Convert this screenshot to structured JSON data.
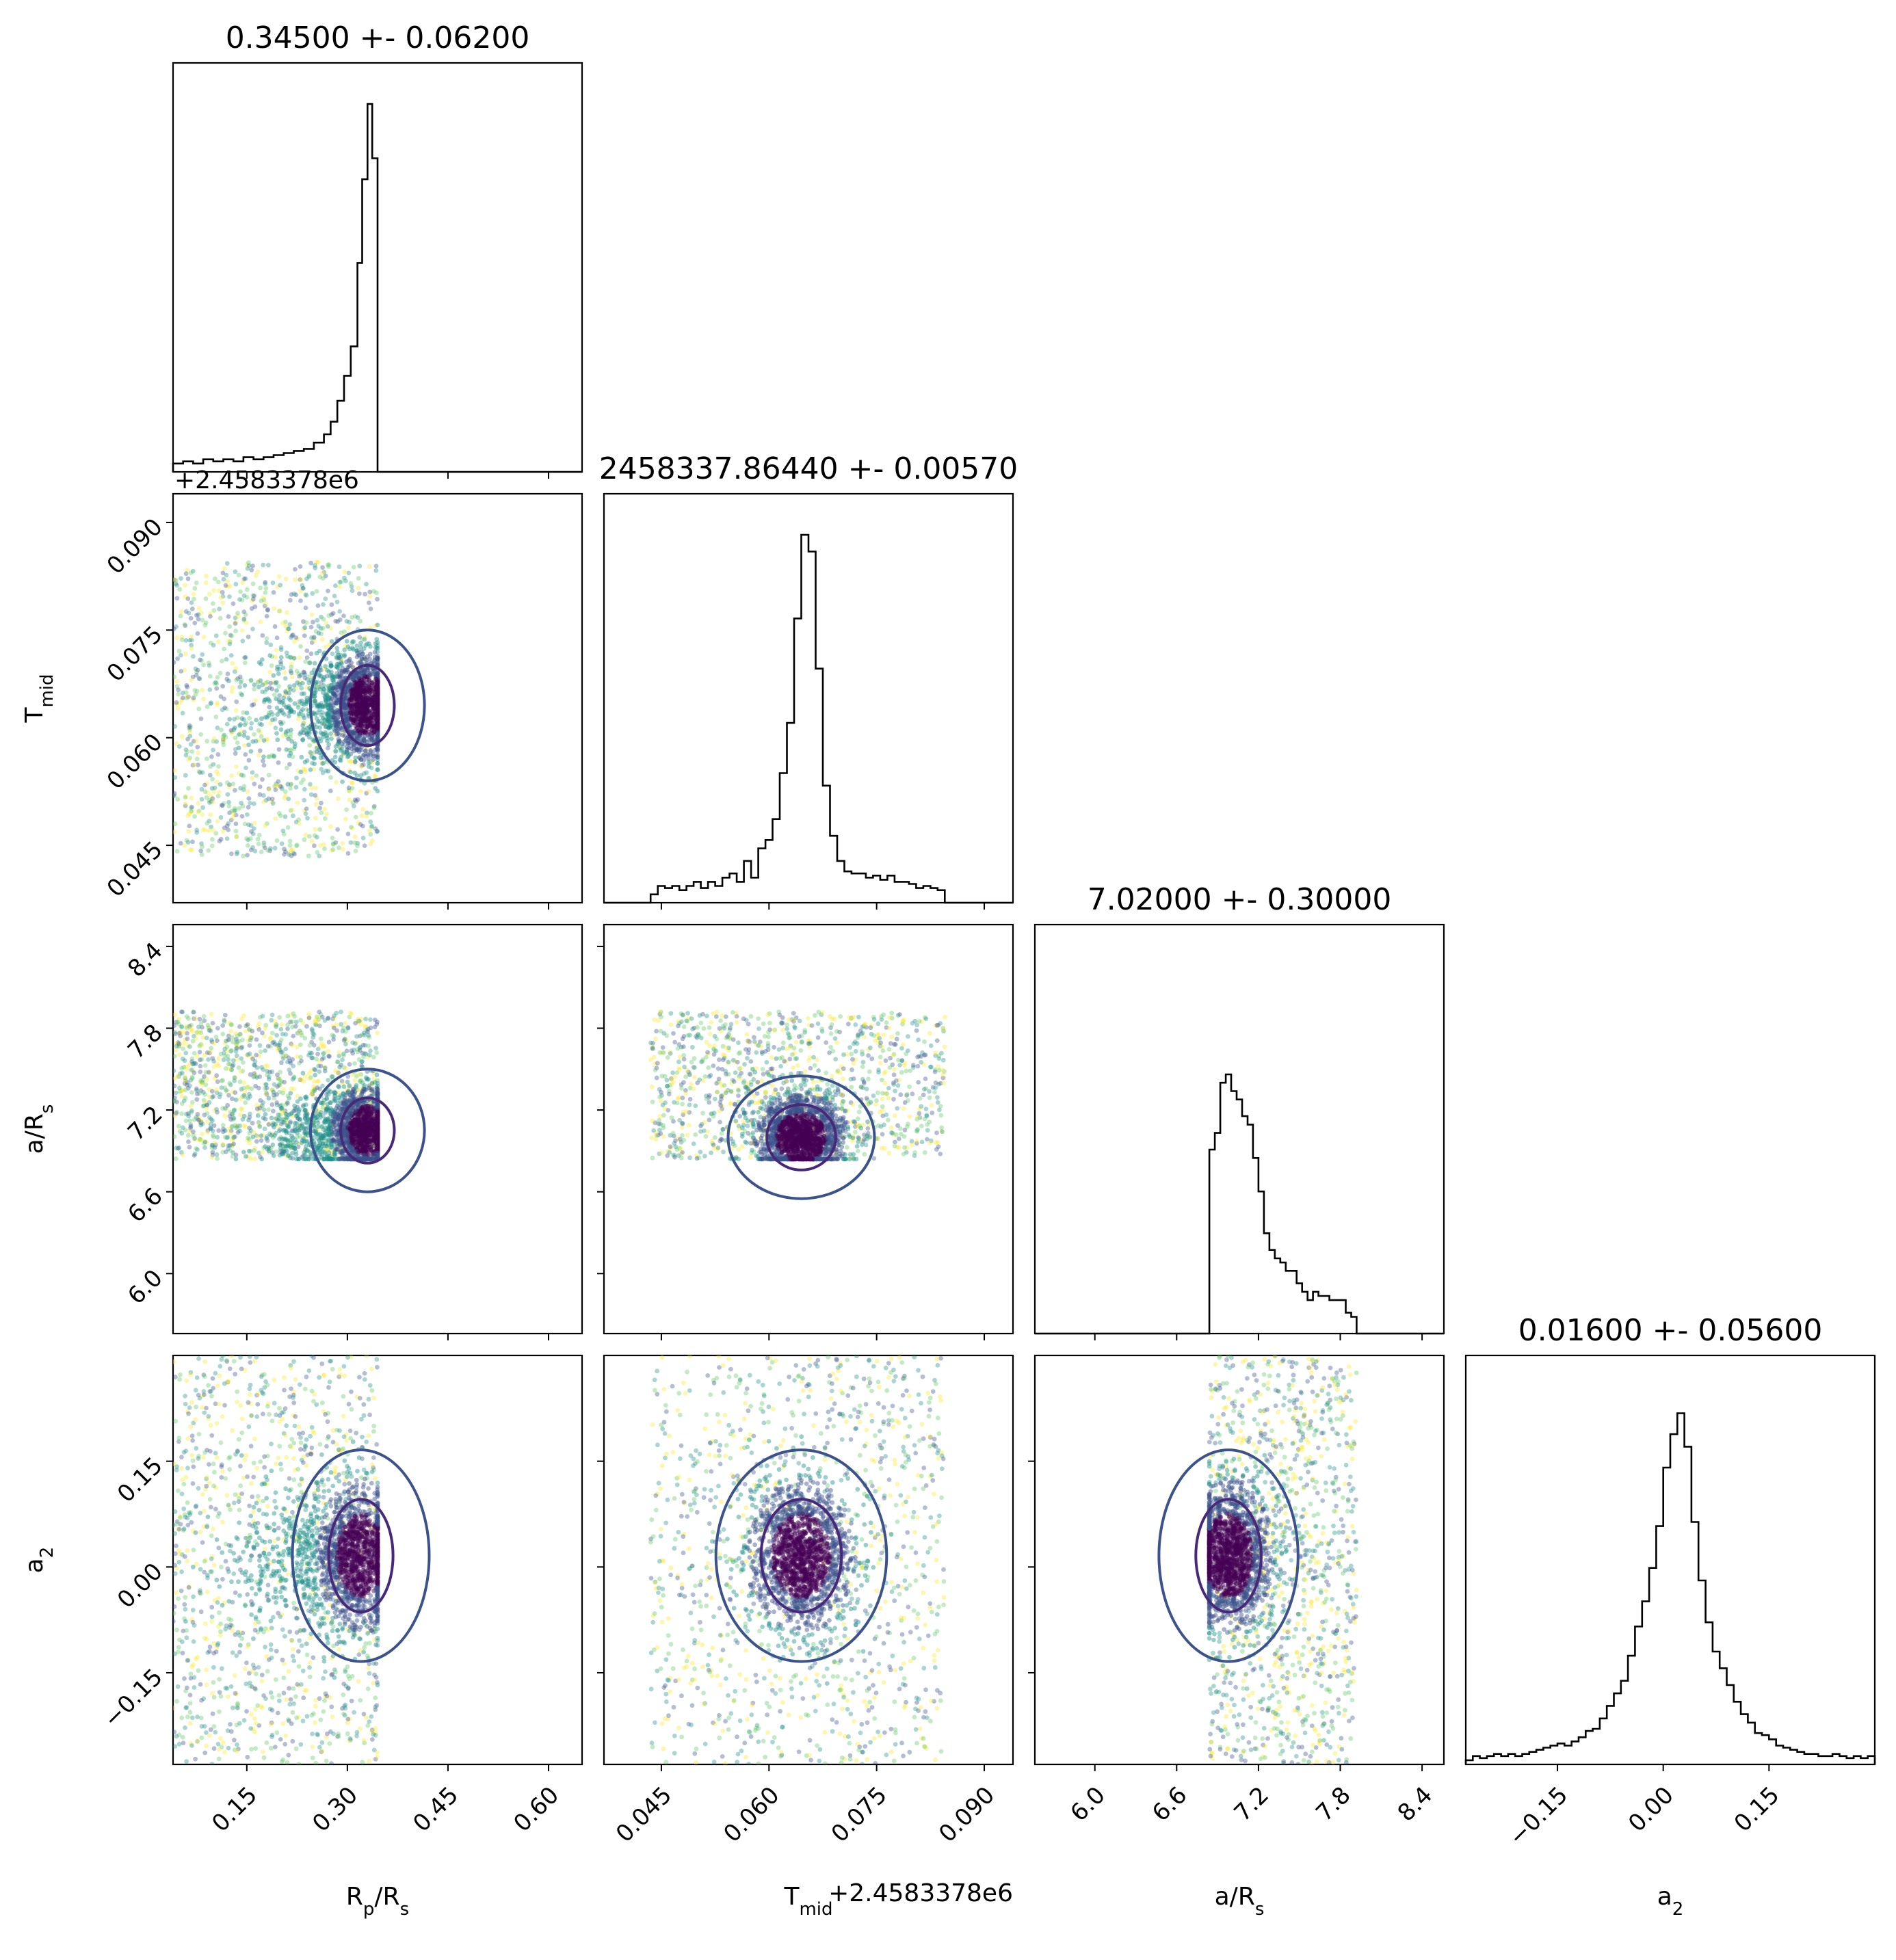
{
  "chart_data": {
    "type": "corner",
    "colormap": [
      "#440154",
      "#3b528b",
      "#21918c",
      "#5ec962",
      "#fde725"
    ],
    "contour_color": "#3b528b",
    "inner_contour_color": "#482878",
    "offset_label": "+2.4583378e6",
    "params": [
      {
        "name": "Rp/Rs",
        "label_main": "R",
        "label_sub1": "p",
        "label_mid": "/R",
        "label_sub2": "s",
        "title": "0.34500 +- 0.06200",
        "range": [
          0.04,
          0.65
        ],
        "ticks": [
          0.15,
          0.3,
          0.45,
          0.6
        ],
        "tick_labels": [
          "0.15",
          "0.30",
          "0.45",
          "0.60"
        ],
        "sample_range": [
          0.04,
          0.345
        ]
      },
      {
        "name": "Tmid",
        "label_main": "T",
        "label_sub1": "mid",
        "title": "2458337.86440 +- 0.00570",
        "range": [
          0.037,
          0.094
        ],
        "ticks": [
          0.045,
          0.06,
          0.075,
          0.09
        ],
        "tick_labels": [
          "0.045",
          "0.060",
          "0.075",
          "0.090"
        ],
        "sample_range": [
          0.0435,
          0.0845
        ]
      },
      {
        "name": "a/Rs",
        "label_main": "a/R",
        "label_sub1": "s",
        "title": "7.02000 +- 0.30000",
        "range": [
          5.56,
          8.56
        ],
        "ticks": [
          6.0,
          6.6,
          7.2,
          7.8,
          8.4
        ],
        "tick_labels": [
          "6.0",
          "6.6",
          "7.2",
          "7.8",
          "8.4"
        ],
        "sample_range": [
          6.84,
          7.92
        ]
      },
      {
        "name": "a2",
        "label_main": "a",
        "label_sub1": "2",
        "title": "0.01600 +- 0.05600",
        "range": [
          -0.28,
          0.3
        ],
        "ticks": [
          -0.15,
          0.0,
          0.15
        ],
        "tick_labels": [
          "−0.15",
          "0.00",
          "0.15"
        ],
        "sample_range": [
          -0.28,
          0.3
        ]
      }
    ],
    "histograms": [
      {
        "param": "Rp/Rs",
        "bins": [
          [
            0.04,
            0.02
          ],
          [
            0.055,
            0.025
          ],
          [
            0.07,
            0.02
          ],
          [
            0.085,
            0.03
          ],
          [
            0.1,
            0.025
          ],
          [
            0.115,
            0.03
          ],
          [
            0.13,
            0.025
          ],
          [
            0.145,
            0.035
          ],
          [
            0.16,
            0.03
          ],
          [
            0.175,
            0.035
          ],
          [
            0.19,
            0.04
          ],
          [
            0.205,
            0.045
          ],
          [
            0.22,
            0.05
          ],
          [
            0.235,
            0.055
          ],
          [
            0.25,
            0.07
          ],
          [
            0.265,
            0.09
          ],
          [
            0.275,
            0.12
          ],
          [
            0.285,
            0.17
          ],
          [
            0.295,
            0.23
          ],
          [
            0.305,
            0.3
          ],
          [
            0.315,
            0.5
          ],
          [
            0.322,
            0.7
          ],
          [
            0.33,
            0.88
          ],
          [
            0.337,
            0.75
          ],
          [
            0.345,
            0.0
          ]
        ],
        "bin_width": 0.008
      },
      {
        "param": "Tmid",
        "bins": [
          [
            0.0435,
            0.02
          ],
          [
            0.0445,
            0.04
          ],
          [
            0.0455,
            0.035
          ],
          [
            0.0465,
            0.04
          ],
          [
            0.0475,
            0.03
          ],
          [
            0.0485,
            0.04
          ],
          [
            0.0495,
            0.05
          ],
          [
            0.0505,
            0.035
          ],
          [
            0.0515,
            0.05
          ],
          [
            0.0525,
            0.04
          ],
          [
            0.0535,
            0.06
          ],
          [
            0.0545,
            0.07
          ],
          [
            0.0555,
            0.05
          ],
          [
            0.0565,
            0.1
          ],
          [
            0.0575,
            0.06
          ],
          [
            0.0585,
            0.13
          ],
          [
            0.0595,
            0.15
          ],
          [
            0.0605,
            0.2
          ],
          [
            0.0615,
            0.31
          ],
          [
            0.0625,
            0.43
          ],
          [
            0.0635,
            0.68
          ],
          [
            0.0645,
            0.88
          ],
          [
            0.0655,
            0.84
          ],
          [
            0.0665,
            0.56
          ],
          [
            0.0675,
            0.28
          ],
          [
            0.0685,
            0.16
          ],
          [
            0.0695,
            0.1
          ],
          [
            0.0705,
            0.075
          ],
          [
            0.0715,
            0.07
          ],
          [
            0.0725,
            0.07
          ],
          [
            0.0735,
            0.06
          ],
          [
            0.0745,
            0.065
          ],
          [
            0.0755,
            0.055
          ],
          [
            0.0765,
            0.065
          ],
          [
            0.0775,
            0.05
          ],
          [
            0.0785,
            0.05
          ],
          [
            0.0795,
            0.045
          ],
          [
            0.0805,
            0.035
          ],
          [
            0.0815,
            0.04
          ],
          [
            0.0825,
            0.035
          ],
          [
            0.0835,
            0.03
          ],
          [
            0.0845,
            0.0
          ]
        ],
        "bin_width": 0.001
      },
      {
        "param": "a/Rs",
        "bins": [
          [
            6.84,
            0.44
          ],
          [
            6.88,
            0.48
          ],
          [
            6.92,
            0.6
          ],
          [
            6.96,
            0.62
          ],
          [
            7.0,
            0.58
          ],
          [
            7.04,
            0.56
          ],
          [
            7.08,
            0.52
          ],
          [
            7.12,
            0.5
          ],
          [
            7.16,
            0.42
          ],
          [
            7.2,
            0.34
          ],
          [
            7.24,
            0.24
          ],
          [
            7.28,
            0.2
          ],
          [
            7.32,
            0.18
          ],
          [
            7.36,
            0.17
          ],
          [
            7.4,
            0.15
          ],
          [
            7.44,
            0.15
          ],
          [
            7.48,
            0.12
          ],
          [
            7.52,
            0.1
          ],
          [
            7.56,
            0.08
          ],
          [
            7.6,
            0.1
          ],
          [
            7.64,
            0.09
          ],
          [
            7.68,
            0.09
          ],
          [
            7.72,
            0.08
          ],
          [
            7.76,
            0.08
          ],
          [
            7.8,
            0.08
          ],
          [
            7.84,
            0.05
          ],
          [
            7.88,
            0.04
          ],
          [
            7.92,
            0.0
          ]
        ],
        "bin_width": 0.04
      },
      {
        "param": "a2",
        "bins": [
          [
            -0.28,
            0.01
          ],
          [
            -0.27,
            0.02
          ],
          [
            -0.26,
            0.015
          ],
          [
            -0.25,
            0.02
          ],
          [
            -0.24,
            0.025
          ],
          [
            -0.23,
            0.02
          ],
          [
            -0.22,
            0.025
          ],
          [
            -0.21,
            0.02
          ],
          [
            -0.2,
            0.025
          ],
          [
            -0.19,
            0.03
          ],
          [
            -0.18,
            0.035
          ],
          [
            -0.17,
            0.04
          ],
          [
            -0.16,
            0.045
          ],
          [
            -0.15,
            0.05
          ],
          [
            -0.14,
            0.045
          ],
          [
            -0.13,
            0.055
          ],
          [
            -0.12,
            0.065
          ],
          [
            -0.11,
            0.08
          ],
          [
            -0.1,
            0.085
          ],
          [
            -0.09,
            0.11
          ],
          [
            -0.08,
            0.14
          ],
          [
            -0.07,
            0.17
          ],
          [
            -0.06,
            0.2
          ],
          [
            -0.05,
            0.26
          ],
          [
            -0.04,
            0.33
          ],
          [
            -0.03,
            0.39
          ],
          [
            -0.02,
            0.47
          ],
          [
            -0.01,
            0.57
          ],
          [
            0.0,
            0.71
          ],
          [
            0.01,
            0.79
          ],
          [
            0.02,
            0.84
          ],
          [
            0.03,
            0.76
          ],
          [
            0.04,
            0.58
          ],
          [
            0.05,
            0.44
          ],
          [
            0.06,
            0.34
          ],
          [
            0.07,
            0.27
          ],
          [
            0.08,
            0.23
          ],
          [
            0.09,
            0.19
          ],
          [
            0.1,
            0.15
          ],
          [
            0.11,
            0.12
          ],
          [
            0.12,
            0.1
          ],
          [
            0.13,
            0.075
          ],
          [
            0.14,
            0.07
          ],
          [
            0.15,
            0.06
          ],
          [
            0.16,
            0.045
          ],
          [
            0.17,
            0.04
          ],
          [
            0.18,
            0.035
          ],
          [
            0.19,
            0.03
          ],
          [
            0.2,
            0.025
          ],
          [
            0.21,
            0.025
          ],
          [
            0.22,
            0.02
          ],
          [
            0.23,
            0.02
          ],
          [
            0.24,
            0.025
          ],
          [
            0.25,
            0.02
          ],
          [
            0.26,
            0.015
          ],
          [
            0.27,
            0.02
          ],
          [
            0.28,
            0.015
          ],
          [
            0.29,
            0.02
          ]
        ],
        "bin_width": 0.01
      }
    ],
    "scatter_panels": [
      {
        "x": "Rp/Rs",
        "y": "Tmid",
        "center": [
          0.33,
          0.0645
        ],
        "spread": [
          0.025,
          0.0035
        ],
        "tail": "x-low"
      },
      {
        "x": "Rp/Rs",
        "y": "a/Rs",
        "center": [
          0.33,
          7.05
        ],
        "spread": [
          0.025,
          0.15
        ],
        "tail": "x-low"
      },
      {
        "x": "Tmid",
        "y": "a/Rs",
        "center": [
          0.0645,
          7.0
        ],
        "spread": [
          0.003,
          0.15
        ],
        "tail": "uniform"
      },
      {
        "x": "Rp/Rs",
        "y": "a2",
        "center": [
          0.32,
          0.016
        ],
        "spread": [
          0.03,
          0.05
        ],
        "tail": "x-low"
      },
      {
        "x": "Tmid",
        "y": "a2",
        "center": [
          0.0645,
          0.016
        ],
        "spread": [
          0.0035,
          0.05
        ],
        "tail": "uniform"
      },
      {
        "x": "a/Rs",
        "y": "a2",
        "center": [
          6.98,
          0.016
        ],
        "spread": [
          0.15,
          0.05
        ],
        "tail": "uniform"
      }
    ]
  }
}
